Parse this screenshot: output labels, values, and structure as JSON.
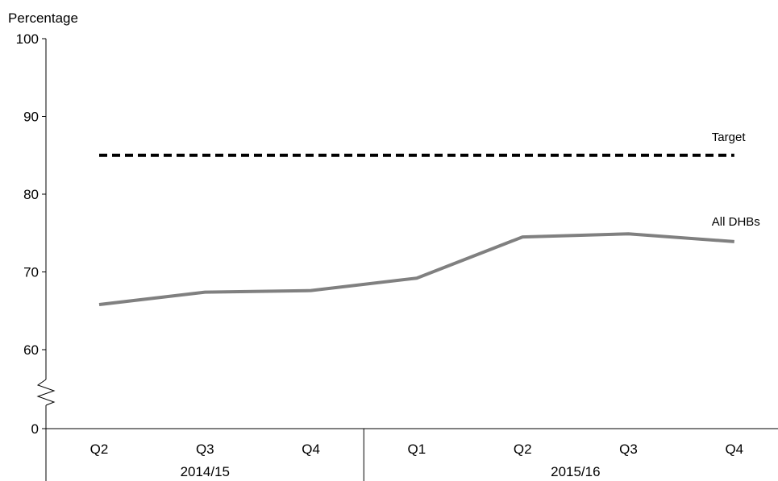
{
  "chart_data": {
    "type": "line",
    "ylabel": "Percentage",
    "xlabel": "",
    "categories": [
      "Q2",
      "Q3",
      "Q4",
      "Q1",
      "Q2",
      "Q3",
      "Q4"
    ],
    "groups": [
      {
        "label": "2014/15",
        "categories": [
          "Q2",
          "Q3",
          "Q4"
        ]
      },
      {
        "label": "2015/16",
        "categories": [
          "Q1",
          "Q2",
          "Q3",
          "Q4"
        ]
      }
    ],
    "y_ticks": [
      0,
      60,
      70,
      80,
      90,
      100
    ],
    "ylim": [
      55,
      100
    ],
    "axis_break": true,
    "grid": false,
    "series": [
      {
        "name": "All DHBs",
        "values": [
          65.8,
          67.4,
          67.6,
          69.2,
          74.5,
          74.9,
          73.9
        ],
        "color": "#808080",
        "style": "solid"
      },
      {
        "name": "Target",
        "values": [
          85,
          85,
          85,
          85,
          85,
          85,
          85
        ],
        "color": "#000000",
        "style": "dashed"
      }
    ]
  }
}
